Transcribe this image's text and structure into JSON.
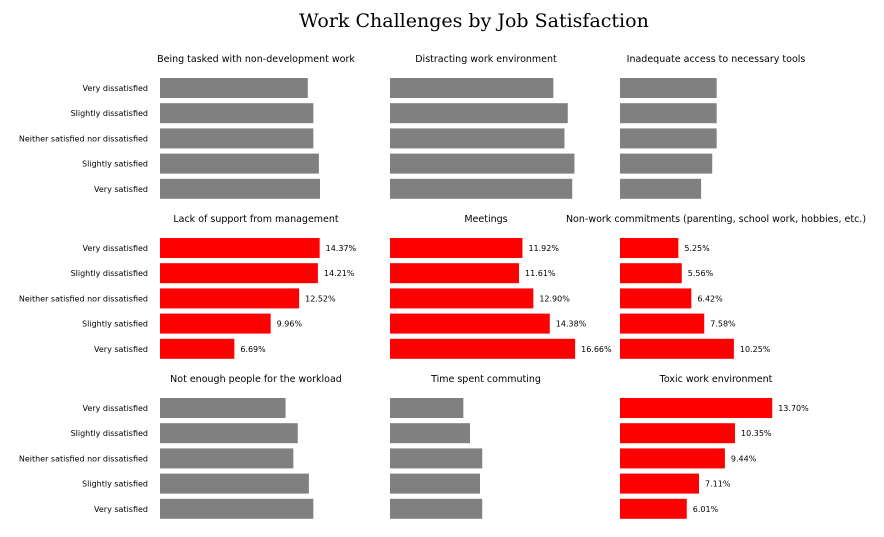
{
  "title": "Work Challenges by Job Satisfaction",
  "colors": {
    "gray": "#808080",
    "red": "#ff0000"
  },
  "chart_data": {
    "type": "bar",
    "orientation": "horizontal",
    "title": "Work Challenges by Job Satisfaction",
    "categories": [
      "Very dissatisfied",
      "Slightly dissatisfied",
      "Neither satisfied nor dissatisfied",
      "Slightly satisfied",
      "Very satisfied"
    ],
    "xlim": [
      0,
      18
    ],
    "panels": [
      {
        "title": "Being tasked with non-development work",
        "highlight": false,
        "show_labels": false,
        "values": [
          13.3,
          13.8,
          13.8,
          14.3,
          14.4
        ]
      },
      {
        "title": "Distracting work environment",
        "highlight": false,
        "show_labels": false,
        "values": [
          14.7,
          16.0,
          15.7,
          16.6,
          16.4
        ]
      },
      {
        "title": "Inadequate access to necessary tools",
        "highlight": false,
        "show_labels": false,
        "values": [
          8.7,
          8.7,
          8.7,
          8.3,
          7.3
        ]
      },
      {
        "title": "Lack of support from management",
        "highlight": true,
        "show_labels": true,
        "values": [
          14.37,
          14.21,
          12.52,
          9.96,
          6.69
        ],
        "labels": [
          "14.37%",
          "14.21%",
          "12.52%",
          "9.96%",
          "6.69%"
        ]
      },
      {
        "title": "Meetings",
        "highlight": true,
        "show_labels": true,
        "values": [
          11.92,
          11.61,
          12.9,
          14.38,
          16.66
        ],
        "labels": [
          "11.92%",
          "11.61%",
          "12.90%",
          "14.38%",
          "16.66%"
        ]
      },
      {
        "title": "Non-work commitments (parenting, school work, hobbies, etc.)",
        "highlight": true,
        "show_labels": true,
        "values": [
          5.25,
          5.56,
          6.42,
          7.58,
          10.25
        ],
        "labels": [
          "5.25%",
          "5.56%",
          "6.42%",
          "7.58%",
          "10.25%"
        ]
      },
      {
        "title": "Not enough people for the workload",
        "highlight": false,
        "show_labels": false,
        "values": [
          11.3,
          12.4,
          12.0,
          13.4,
          13.8
        ]
      },
      {
        "title": "Time spent commuting",
        "highlight": false,
        "show_labels": false,
        "values": [
          6.6,
          7.2,
          8.3,
          8.1,
          8.3
        ]
      },
      {
        "title": "Toxic work environment",
        "highlight": true,
        "show_labels": true,
        "values": [
          13.7,
          10.35,
          9.44,
          7.11,
          6.01
        ],
        "labels": [
          "13.70%",
          "10.35%",
          "9.44%",
          "7.11%",
          "6.01%"
        ]
      }
    ]
  }
}
